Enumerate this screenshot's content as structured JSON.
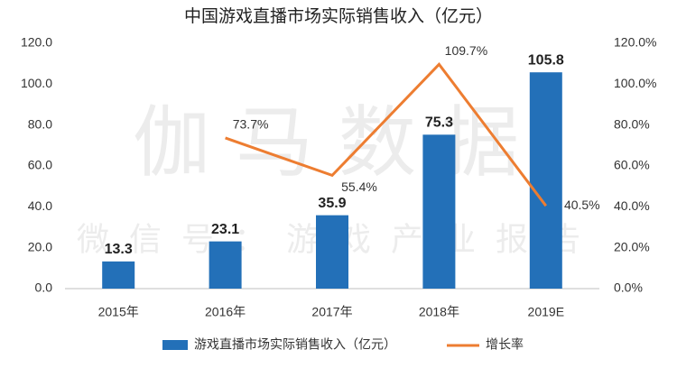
{
  "chart_data": {
    "type": "bar_line",
    "title": "中国游戏直播市场实际销售收入（亿元）",
    "watermark": "伽马数据",
    "watermark_subtitle": "微信号：游戏产业报告",
    "categories": [
      "2015年",
      "2016年",
      "2017年",
      "2018年",
      "2019E"
    ],
    "series": [
      {
        "name": "游戏直播市场实际销售收入（亿元）",
        "type": "bar",
        "color": "#2370b8",
        "values": [
          13.3,
          23.1,
          35.9,
          75.3,
          105.8
        ]
      },
      {
        "name": "增长率",
        "type": "line",
        "axis": "y2",
        "color": "#ed7d31",
        "values": [
          null,
          73.7,
          55.4,
          109.7,
          40.5
        ],
        "value_labels": [
          null,
          "73.7%",
          "55.4%",
          "109.7%",
          "40.5%"
        ]
      }
    ],
    "ylim": [
      0,
      120
    ],
    "yticks": [
      {
        "value": 0,
        "label": "0.0"
      },
      {
        "value": 20,
        "label": "20.0"
      },
      {
        "value": 40,
        "label": "40.0"
      },
      {
        "value": 60,
        "label": "60.0"
      },
      {
        "value": 80,
        "label": "80.0"
      },
      {
        "value": 100,
        "label": "100.0"
      },
      {
        "value": 120,
        "label": "120.0"
      }
    ],
    "y2lim": [
      0,
      120
    ],
    "y2ticks": [
      {
        "value": 0,
        "label": "0.0%"
      },
      {
        "value": 20,
        "label": "20.0%"
      },
      {
        "value": 40,
        "label": "40.0%"
      },
      {
        "value": 60,
        "label": "60.0%"
      },
      {
        "value": 80,
        "label": "80.0%"
      },
      {
        "value": 100,
        "label": "100.0%"
      },
      {
        "value": 120,
        "label": "120.0%"
      }
    ],
    "grid": false,
    "legend": "bottom"
  }
}
